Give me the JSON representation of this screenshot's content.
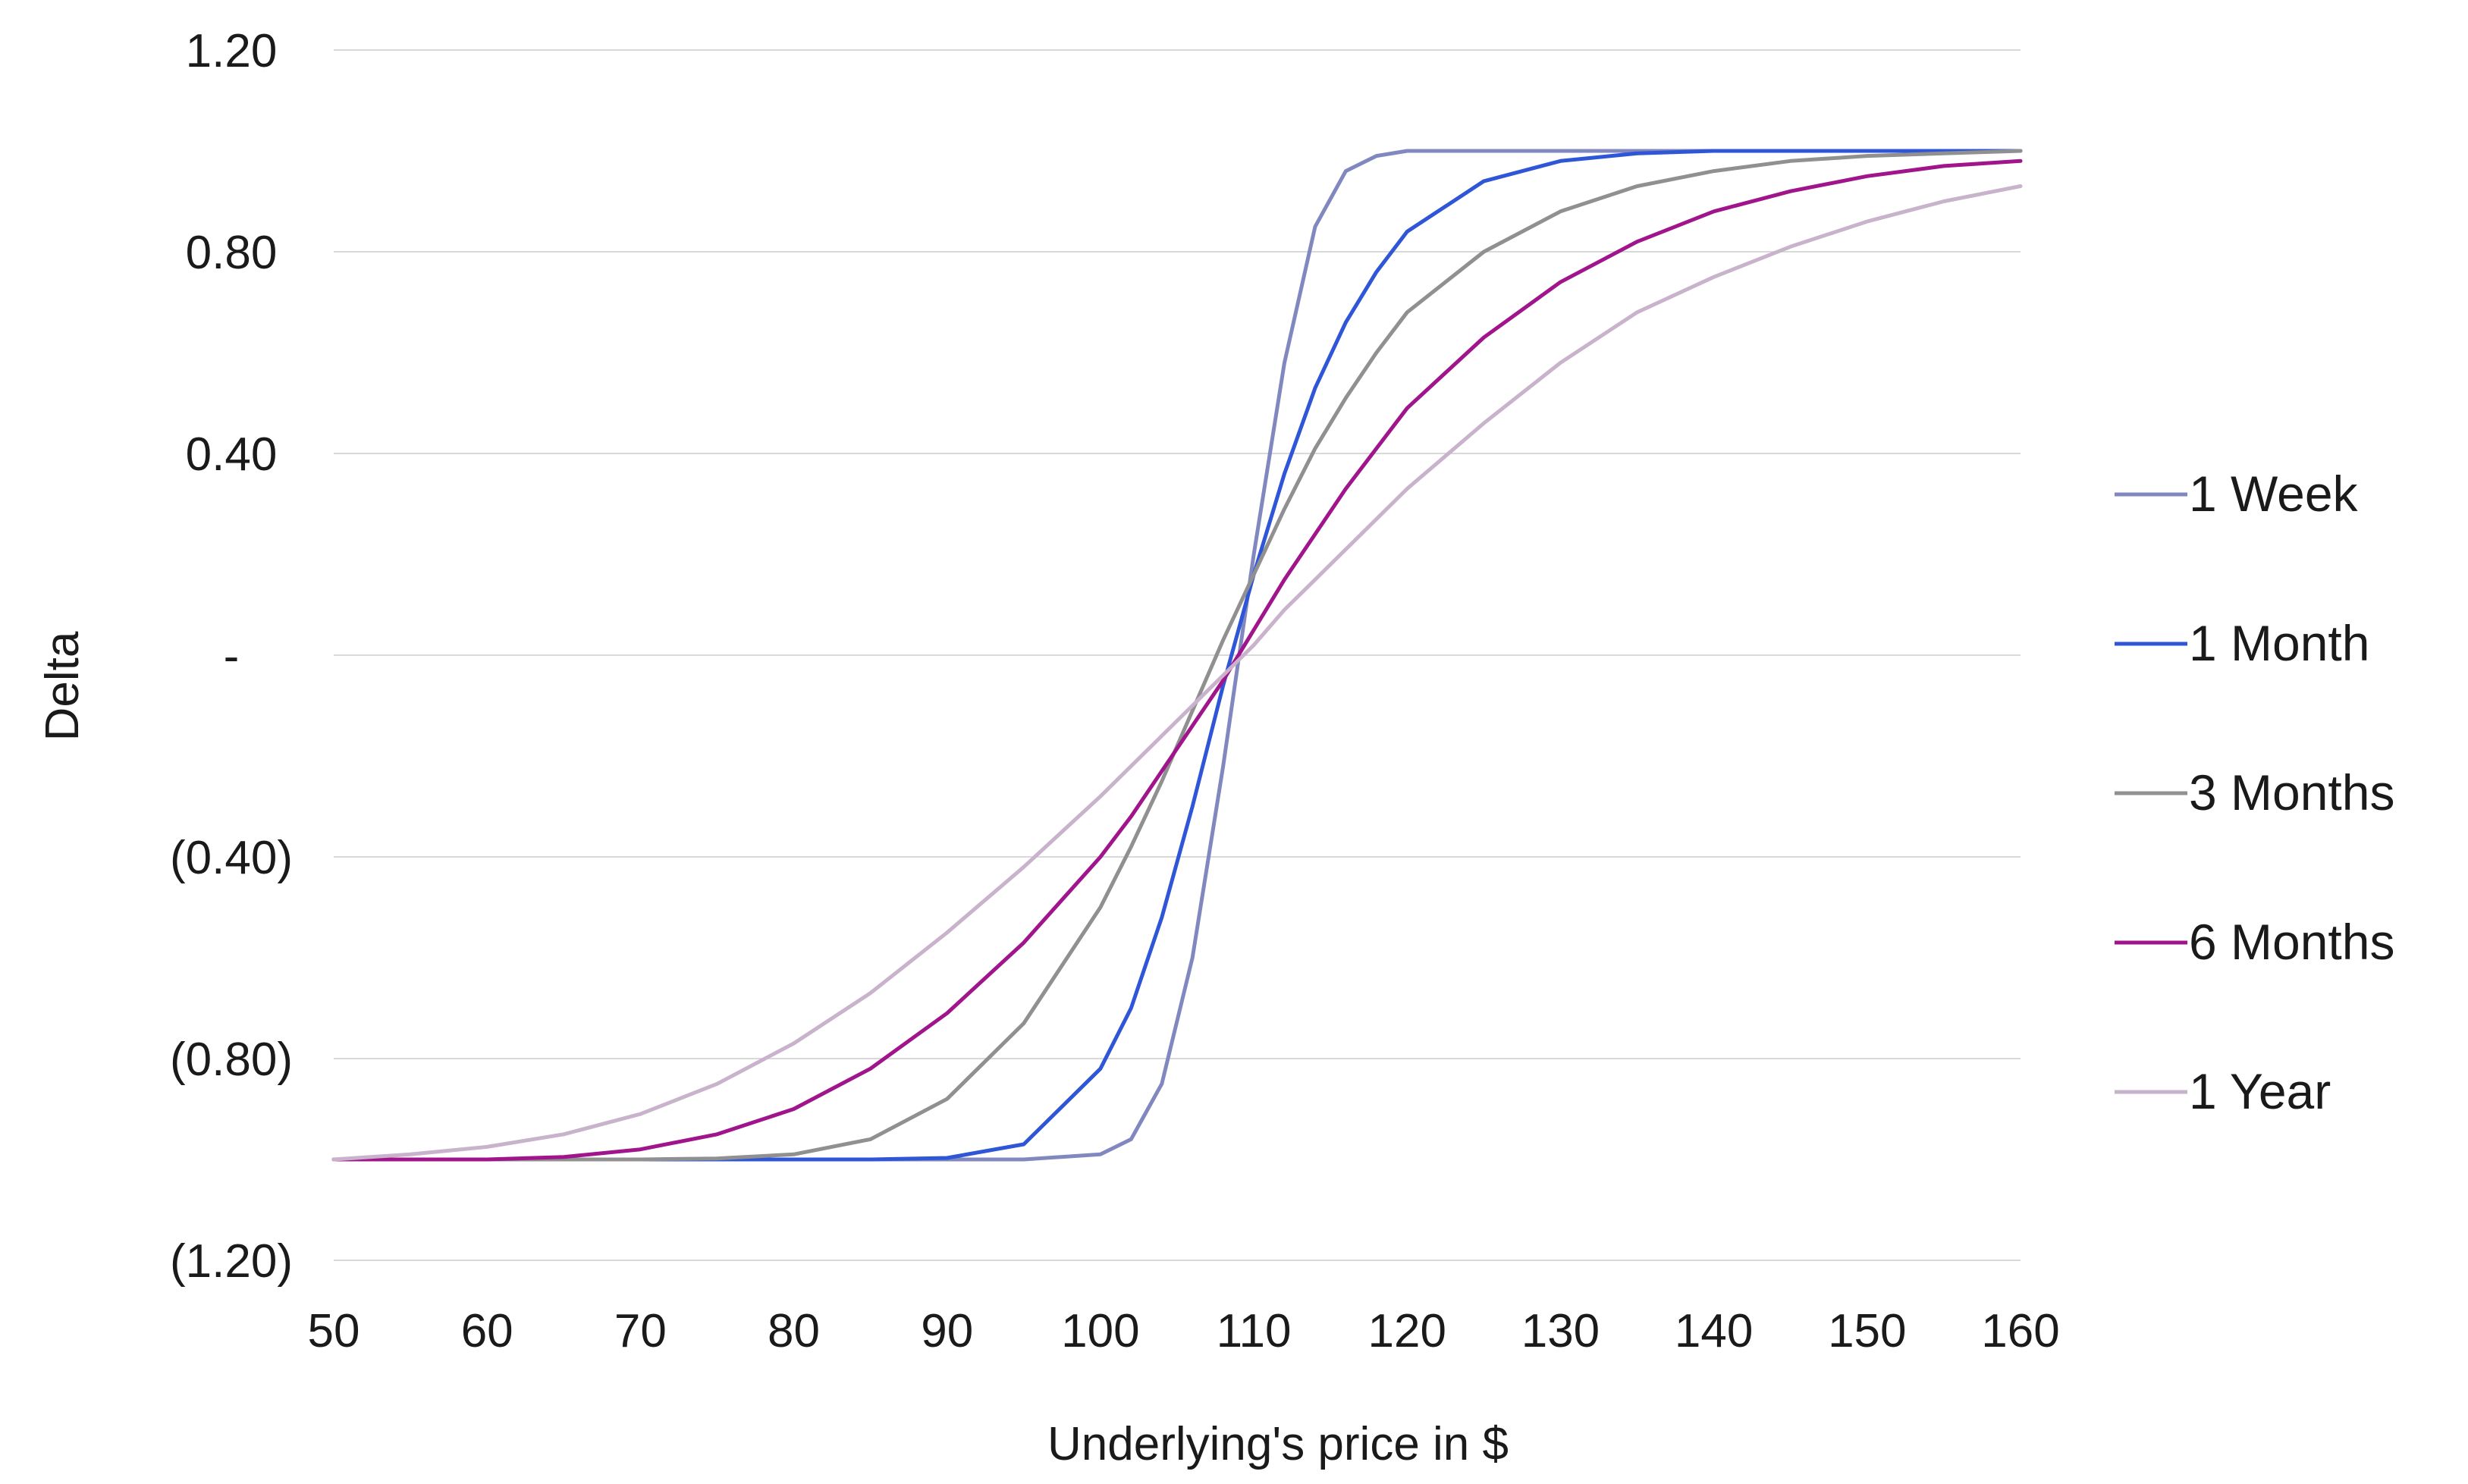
{
  "chart_data": {
    "type": "line",
    "xlabel": "Underlying's price in $",
    "ylabel": "Delta",
    "xlim": [
      50,
      160
    ],
    "ylim": [
      -1.2,
      1.2
    ],
    "x_ticks": [
      50,
      60,
      70,
      80,
      90,
      100,
      110,
      120,
      130,
      140,
      150,
      160
    ],
    "y_ticks": [
      {
        "value": 1.2,
        "label": "1.20"
      },
      {
        "value": 0.8,
        "label": "0.80"
      },
      {
        "value": 0.4,
        "label": "0.40"
      },
      {
        "value": 0.0,
        "label": "-"
      },
      {
        "value": -0.4,
        "label": "(0.40)"
      },
      {
        "value": -0.8,
        "label": "(0.80)"
      },
      {
        "value": -1.2,
        "label": "(1.20)"
      }
    ],
    "grid": "horizontal",
    "legend_position": "right",
    "x": [
      50,
      55,
      60,
      65,
      70,
      75,
      80,
      85,
      90,
      95,
      100,
      102,
      104,
      106,
      108,
      110,
      112,
      114,
      116,
      118,
      120,
      125,
      130,
      135,
      140,
      145,
      150,
      155,
      160
    ],
    "series": [
      {
        "name": "1 Week",
        "color": "#8088bf",
        "values": [
          -1.0,
          -1.0,
          -1.0,
          -1.0,
          -1.0,
          -1.0,
          -1.0,
          -1.0,
          -1.0,
          -1.0,
          -0.99,
          -0.96,
          -0.85,
          -0.6,
          -0.22,
          0.2,
          0.58,
          0.85,
          0.96,
          0.99,
          1.0,
          1.0,
          1.0,
          1.0,
          1.0,
          1.0,
          1.0,
          1.0,
          1.0
        ]
      },
      {
        "name": "1 Month",
        "color": "#2e56d6",
        "values": [
          -1.0,
          -1.0,
          -1.0,
          -1.0,
          -1.0,
          -1.0,
          -1.0,
          -1.0,
          -0.997,
          -0.97,
          -0.82,
          -0.7,
          -0.52,
          -0.3,
          -0.06,
          0.16,
          0.36,
          0.53,
          0.66,
          0.76,
          0.84,
          0.94,
          0.98,
          0.995,
          1.0,
          1.0,
          1.0,
          1.0,
          1.0
        ]
      },
      {
        "name": "3 Months",
        "color": "#909090",
        "values": [
          -1.0,
          -1.0,
          -1.0,
          -1.0,
          -1.0,
          -0.998,
          -0.99,
          -0.96,
          -0.88,
          -0.73,
          -0.5,
          -0.38,
          -0.25,
          -0.11,
          0.03,
          0.16,
          0.29,
          0.41,
          0.51,
          0.6,
          0.68,
          0.8,
          0.88,
          0.93,
          0.96,
          0.98,
          0.99,
          0.995,
          1.0
        ]
      },
      {
        "name": "6 Months",
        "color": "#a0148c",
        "values": [
          -1.0,
          -1.0,
          -1.0,
          -0.995,
          -0.98,
          -0.95,
          -0.9,
          -0.82,
          -0.71,
          -0.57,
          -0.4,
          -0.32,
          -0.23,
          -0.14,
          -0.05,
          0.05,
          0.15,
          0.24,
          0.33,
          0.41,
          0.49,
          0.63,
          0.74,
          0.82,
          0.88,
          0.92,
          0.95,
          0.97,
          0.98
        ]
      },
      {
        "name": "1 Year",
        "color": "#c9b2cb",
        "values": [
          -1.0,
          -0.99,
          -0.975,
          -0.95,
          -0.91,
          -0.85,
          -0.77,
          -0.67,
          -0.55,
          -0.42,
          -0.28,
          -0.22,
          -0.16,
          -0.1,
          -0.04,
          0.02,
          0.09,
          0.15,
          0.21,
          0.27,
          0.33,
          0.46,
          0.58,
          0.68,
          0.75,
          0.81,
          0.86,
          0.9,
          0.93
        ]
      }
    ]
  }
}
